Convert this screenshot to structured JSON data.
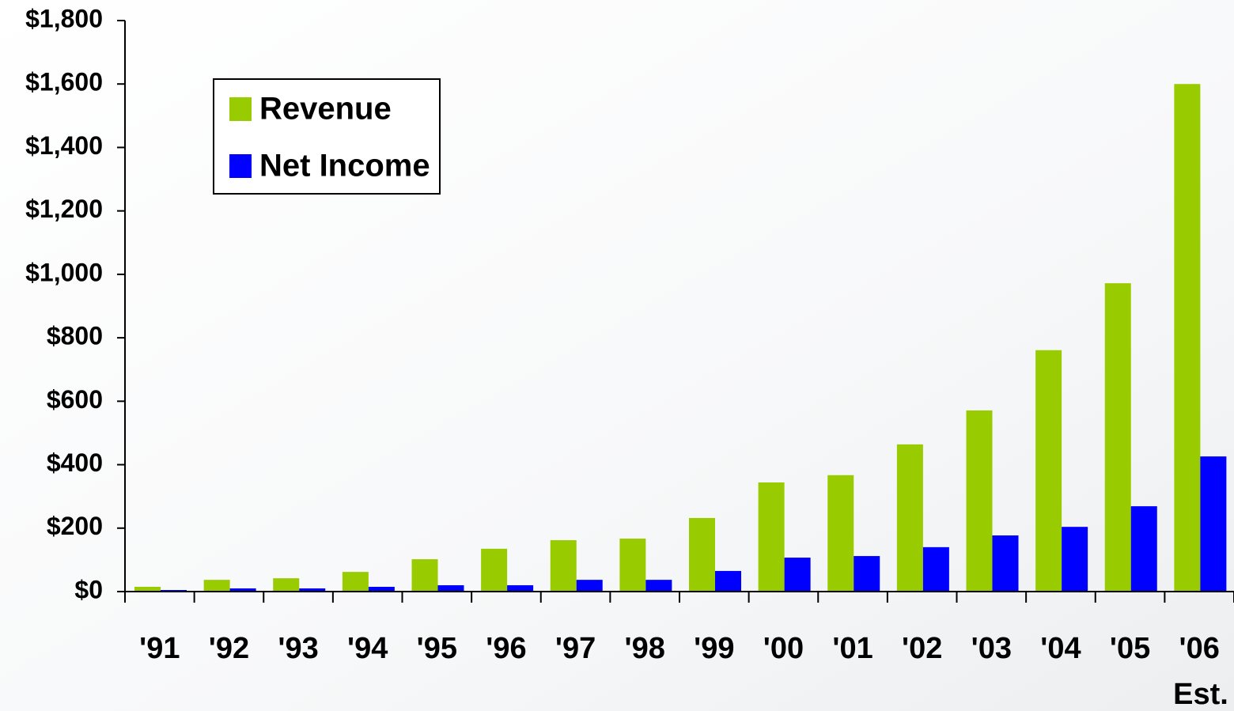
{
  "chart_data": {
    "type": "bar",
    "categories": [
      "'91",
      "'92",
      "'93",
      "'94",
      "'95",
      "'96",
      "'97",
      "'98",
      "'99",
      "'00",
      "'01",
      "'02",
      "'03",
      "'04",
      "'05",
      "'06"
    ],
    "annotation": "Est.",
    "series": [
      {
        "name": "Revenue",
        "color": "#99cc00",
        "values": [
          15,
          37,
          42,
          62,
          102,
          135,
          162,
          167,
          232,
          344,
          367,
          464,
          571,
          761,
          972,
          1600
        ]
      },
      {
        "name": "Net Income",
        "color": "#0000ff",
        "values": [
          5,
          10,
          10,
          15,
          20,
          20,
          37,
          37,
          65,
          107,
          112,
          140,
          177,
          204,
          269,
          426
        ]
      }
    ],
    "ylim": [
      0,
      1800
    ],
    "yticks": [
      {
        "value": 0,
        "label": "$0"
      },
      {
        "value": 200,
        "label": "$200"
      },
      {
        "value": 400,
        "label": "$400"
      },
      {
        "value": 600,
        "label": "$600"
      },
      {
        "value": 800,
        "label": "$800"
      },
      {
        "value": 1000,
        "label": "$1,000"
      },
      {
        "value": 1200,
        "label": "$1,200"
      },
      {
        "value": 1400,
        "label": "$1,400"
      },
      {
        "value": 1600,
        "label": "$1,600"
      },
      {
        "value": 1800,
        "label": "$1,800"
      }
    ],
    "legend": "upper left"
  }
}
